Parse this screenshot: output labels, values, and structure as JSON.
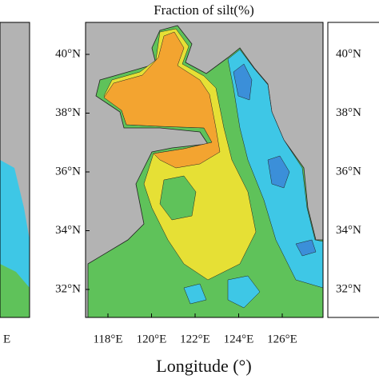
{
  "title": "Fraction of silt(%)",
  "x_axis_label": "Longitude (°)",
  "lat_labels": [
    "40°N",
    "38°N",
    "36°N",
    "34°N",
    "32°N"
  ],
  "lon_labels": [
    "118°E",
    "120°E",
    "122°E",
    "124°E",
    "126°E"
  ],
  "right_panel_lat_labels": [
    "40°N",
    "38°N",
    "36°N",
    "34°N",
    "32°N"
  ],
  "left_panel_fragment": "E"
}
